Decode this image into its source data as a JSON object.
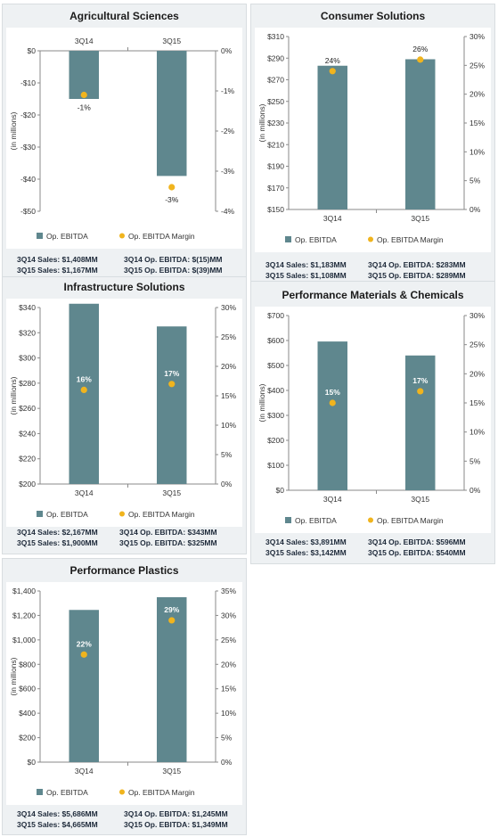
{
  "colors": {
    "bar": "#5f878e",
    "marker": "#f0b41e",
    "axis": "#8a8a8a"
  },
  "legend": {
    "bar_label": "Op. EBITDA",
    "marker_label": "Op. EBITDA Margin"
  },
  "y_axis_title": "(in millions)",
  "chart_data": [
    {
      "type": "bar",
      "title": "Agricultural Sciences",
      "categories": [
        "3Q14",
        "3Q15"
      ],
      "category_axis_position": "top",
      "series": [
        {
          "name": "Op. EBITDA",
          "values": [
            -15,
            -39
          ]
        },
        {
          "name": "Op. EBITDA Margin",
          "type": "scatter",
          "axis": "secondary",
          "values": [
            -1.1,
            -3.4
          ]
        }
      ],
      "ylim": [
        -50,
        0
      ],
      "y_ticks": [
        "$0",
        "-$10",
        "-$20",
        "-$30",
        "-$40",
        "-$50"
      ],
      "y2lim": [
        -4,
        0
      ],
      "y2_ticks": [
        "0%",
        "-1%",
        "-2%",
        "-3%",
        "-4%"
      ],
      "data_labels": [
        "-1%",
        "-3%"
      ],
      "data_label_color": "#222222",
      "ylabel": "(in millions)",
      "legend": [
        "Op. EBITDA",
        "Op. EBITDA Margin"
      ],
      "notes": [
        [
          "3Q14 Sales: $1,408MM",
          "3Q14 Op. EBITDA: $(15)MM"
        ],
        [
          "3Q15 Sales: $1,167MM",
          "3Q15 Op. EBITDA: $(39)MM"
        ]
      ]
    },
    {
      "type": "bar",
      "title": "Consumer Solutions",
      "categories": [
        "3Q14",
        "3Q15"
      ],
      "category_axis_position": "bottom",
      "series": [
        {
          "name": "Op. EBITDA",
          "values": [
            283,
            289
          ]
        },
        {
          "name": "Op. EBITDA Margin",
          "type": "scatter",
          "axis": "secondary",
          "values": [
            24,
            26
          ]
        }
      ],
      "ylim": [
        150,
        310
      ],
      "y_ticks": [
        "$310",
        "$290",
        "$270",
        "$250",
        "$230",
        "$210",
        "$190",
        "$170",
        "$150"
      ],
      "y2lim": [
        0,
        30
      ],
      "y2_ticks": [
        "30%",
        "25%",
        "20%",
        "15%",
        "10%",
        "5%",
        "0%"
      ],
      "data_labels": [
        "24%",
        "26%"
      ],
      "data_label_color": "#222222",
      "ylabel": "(in millions)",
      "legend": [
        "Op. EBITDA",
        "Op. EBITDA Margin"
      ],
      "notes": [
        [
          "3Q14 Sales: $1,183MM",
          "3Q14 Op. EBITDA: $283MM"
        ],
        [
          "3Q15 Sales: $1,108MM",
          "3Q15 Op. EBITDA: $289MM"
        ]
      ]
    },
    {
      "type": "bar",
      "title": "Infrastructure Solutions",
      "categories": [
        "3Q14",
        "3Q15"
      ],
      "category_axis_position": "bottom",
      "series": [
        {
          "name": "Op. EBITDA",
          "values": [
            343,
            325
          ]
        },
        {
          "name": "Op. EBITDA Margin",
          "type": "scatter",
          "axis": "secondary",
          "values": [
            16,
            17
          ]
        }
      ],
      "ylim": [
        200,
        340
      ],
      "y_ticks": [
        "$340",
        "$320",
        "$300",
        "$280",
        "$260",
        "$240",
        "$220",
        "$200"
      ],
      "y2lim": [
        0,
        30
      ],
      "y2_ticks": [
        "30%",
        "25%",
        "20%",
        "15%",
        "10%",
        "5%",
        "0%"
      ],
      "data_labels": [
        "16%",
        "17%"
      ],
      "data_label_color": "#ffffff",
      "ylabel": "(in millions)",
      "legend": [
        "Op. EBITDA",
        "Op. EBITDA Margin"
      ],
      "notes": [
        [
          "3Q14 Sales: $2,167MM",
          "3Q14 Op. EBITDA: $343MM"
        ],
        [
          "3Q15 Sales: $1,900MM",
          "3Q15 Op. EBITDA: $325MM"
        ]
      ]
    },
    {
      "type": "bar",
      "title": "Performance Materials & Chemicals",
      "categories": [
        "3Q14",
        "3Q15"
      ],
      "category_axis_position": "bottom",
      "series": [
        {
          "name": "Op. EBITDA",
          "values": [
            596,
            540
          ]
        },
        {
          "name": "Op. EBITDA Margin",
          "type": "scatter",
          "axis": "secondary",
          "values": [
            15,
            17
          ]
        }
      ],
      "ylim": [
        0,
        700
      ],
      "y_ticks": [
        "$700",
        "$600",
        "$500",
        "$400",
        "$300",
        "$200",
        "$100",
        "$0"
      ],
      "y2lim": [
        0,
        30
      ],
      "y2_ticks": [
        "30%",
        "25%",
        "20%",
        "15%",
        "10%",
        "5%",
        "0%"
      ],
      "data_labels": [
        "15%",
        "17%"
      ],
      "data_label_color": "#ffffff",
      "ylabel": "(in millions)",
      "legend": [
        "Op. EBITDA",
        "Op. EBITDA Margin"
      ],
      "notes": [
        [
          "3Q14 Sales: $3,891MM",
          "3Q14 Op. EBITDA: $596MM"
        ],
        [
          "3Q15 Sales: $3,142MM",
          "3Q15 Op. EBITDA: $540MM"
        ]
      ]
    },
    {
      "type": "bar",
      "title": "Performance Plastics",
      "categories": [
        "3Q14",
        "3Q15"
      ],
      "category_axis_position": "bottom",
      "series": [
        {
          "name": "Op. EBITDA",
          "values": [
            1245,
            1349
          ]
        },
        {
          "name": "Op. EBITDA Margin",
          "type": "scatter",
          "axis": "secondary",
          "values": [
            22,
            29
          ]
        }
      ],
      "ylim": [
        0,
        1400
      ],
      "y_ticks": [
        "$1,400",
        "$1,200",
        "$1,000",
        "$800",
        "$600",
        "$400",
        "$200",
        "$0"
      ],
      "y2lim": [
        0,
        35
      ],
      "y2_ticks": [
        "35%",
        "30%",
        "25%",
        "20%",
        "15%",
        "10%",
        "5%",
        "0%"
      ],
      "data_labels": [
        "22%",
        "29%"
      ],
      "data_label_color": "#ffffff",
      "ylabel": "(in millions)",
      "legend": [
        "Op. EBITDA",
        "Op. EBITDA Margin"
      ],
      "notes": [
        [
          "3Q14 Sales: $5,686MM",
          "3Q14 Op. EBITDA: $1,245MM"
        ],
        [
          "3Q15 Sales: $4,665MM",
          "3Q15 Op. EBITDA: $1,349MM"
        ]
      ]
    }
  ]
}
